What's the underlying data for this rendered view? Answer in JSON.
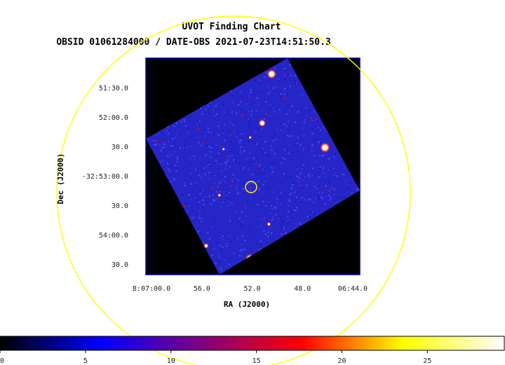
{
  "chart_data": {
    "type": "heatmap",
    "title": "UVOT Finding Chart",
    "subtitle": "OBSID 01061284000 / DATE-OBS 2021-07-23T14:51:50.3",
    "xlabel": "RA (J2000)",
    "ylabel": "Dec (J2000)",
    "x_ticks": [
      "8:07:00.0",
      "56.0",
      "52.0",
      "48.0",
      "06:44.0"
    ],
    "y_ticks": [
      "51:30.0",
      "52:00.0",
      "30.0",
      "-32:53:00.0",
      "30.0",
      "54:00.0",
      "30.0"
    ],
    "colorbar": {
      "ticks": [
        "0",
        "5",
        "10",
        "15",
        "20",
        "25"
      ],
      "range": [
        0,
        29.5
      ],
      "colormap": [
        "#000000",
        "#0000ff",
        "#800080",
        "#ff0000",
        "#ffff00",
        "#ffffff"
      ]
    },
    "image_bounds_arcsec": {
      "ra_range_s": [
        0.0,
        16.0
      ],
      "dec_range_arcsec": [
        -75.0,
        75.0
      ]
    },
    "target_marker_color": "#ffff00",
    "circle_color": "#ffff00",
    "sources": [
      {
        "ra_offset_s": 1.6,
        "dec_arcsec": 48,
        "brightness": 26
      },
      {
        "ra_offset_s": 2.5,
        "dec_arcsec": 42,
        "brightness": 18
      },
      {
        "ra_offset_s": 4.0,
        "dec_arcsec": 54,
        "brightness": 25
      },
      {
        "ra_offset_s": 9.4,
        "dec_arcsec": 64,
        "brightness": 28
      },
      {
        "ra_offset_s": 8.7,
        "dec_arcsec": 30,
        "brightness": 24
      },
      {
        "ra_offset_s": 13.4,
        "dec_arcsec": 13,
        "brightness": 29
      },
      {
        "ra_offset_s": 14.5,
        "dec_arcsec": 16,
        "brightness": 25
      },
      {
        "ra_offset_s": 12.8,
        "dec_arcsec": 48,
        "brightness": 22
      },
      {
        "ra_offset_s": 13.6,
        "dec_arcsec": 30,
        "brightness": 20
      },
      {
        "ra_offset_s": 7.8,
        "dec_arcsec": 20,
        "brightness": 16
      },
      {
        "ra_offset_s": 3.2,
        "dec_arcsec": -40,
        "brightness": 18
      },
      {
        "ra_offset_s": 4.5,
        "dec_arcsec": -55,
        "brightness": 20
      },
      {
        "ra_offset_s": 7.8,
        "dec_arcsec": -64,
        "brightness": 29
      },
      {
        "ra_offset_s": 5.5,
        "dec_arcsec": -20,
        "brightness": 17
      },
      {
        "ra_offset_s": 3.8,
        "dec_arcsec": 58,
        "brightness": 18
      },
      {
        "ra_offset_s": 9.2,
        "dec_arcsec": -40,
        "brightness": 18
      },
      {
        "ra_offset_s": 12.5,
        "dec_arcsec": -45,
        "brightness": 16
      },
      {
        "ra_offset_s": 5.8,
        "dec_arcsec": 12,
        "brightness": 16
      },
      {
        "ra_offset_s": 6.3,
        "dec_arcsec": -80,
        "brightness": 17
      },
      {
        "ra_offset_s": 0.2,
        "dec_arcsec": 26,
        "brightness": 24
      },
      {
        "ra_offset_s": 4.0,
        "dec_arcsec": -70,
        "brightness": 16
      }
    ],
    "target": {
      "ra_offset_s": 6.3,
      "dec_arcsec": -18
    }
  }
}
